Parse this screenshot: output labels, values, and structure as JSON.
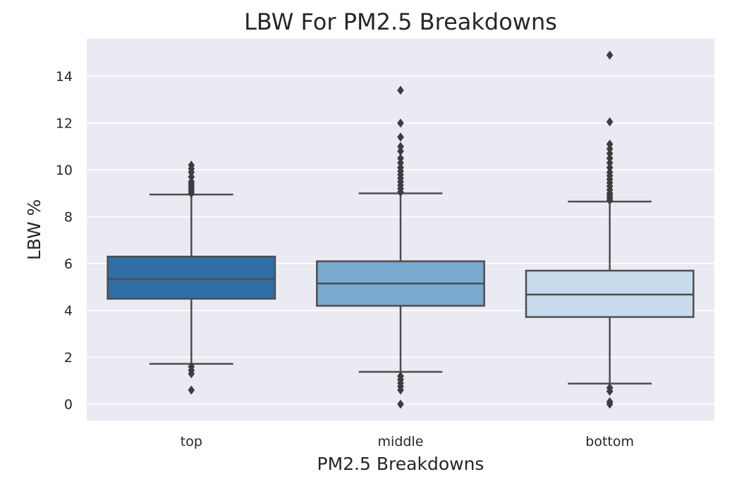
{
  "chart_data": {
    "type": "box",
    "title": "LBW For PM2.5 Breakdowns",
    "xlabel": "PM2.5 Breakdowns",
    "ylabel": "LBW %",
    "categories": [
      "top",
      "middle",
      "bottom"
    ],
    "ylim": [
      -0.7,
      15.6
    ],
    "yticks": [
      0,
      2,
      4,
      6,
      8,
      10,
      12,
      14
    ],
    "grid": true,
    "legend": "none",
    "boxes": [
      {
        "category": "top",
        "whisker_low": 1.72,
        "q1": 4.5,
        "median": 5.35,
        "q3": 6.3,
        "whisker_high": 8.95,
        "color": "#2f6fa6",
        "outliers": [
          1.6,
          1.45,
          1.3,
          0.6,
          9.0,
          9.1,
          9.2,
          9.3,
          9.4,
          9.5,
          9.7,
          9.9,
          10.05,
          10.2
        ]
      },
      {
        "category": "middle",
        "whisker_low": 1.38,
        "q1": 4.2,
        "median": 5.15,
        "q3": 6.1,
        "whisker_high": 9.0,
        "color": "#77aace",
        "outliers": [
          1.2,
          1.05,
          0.9,
          0.75,
          0.6,
          0.0,
          9.05,
          9.2,
          9.35,
          9.5,
          9.65,
          9.8,
          9.95,
          10.1,
          10.3,
          10.5,
          10.8,
          11.0,
          11.4,
          12.0,
          13.4
        ]
      },
      {
        "category": "bottom",
        "whisker_low": 0.88,
        "q1": 3.72,
        "median": 4.68,
        "q3": 5.7,
        "whisker_high": 8.65,
        "color": "#c8dbec",
        "outliers": [
          0.7,
          0.55,
          0.1,
          0.0,
          8.7,
          8.8,
          8.9,
          9.0,
          9.15,
          9.3,
          9.45,
          9.6,
          9.75,
          9.9,
          10.1,
          10.3,
          10.5,
          10.7,
          10.9,
          11.1,
          12.05,
          14.9
        ]
      }
    ]
  }
}
